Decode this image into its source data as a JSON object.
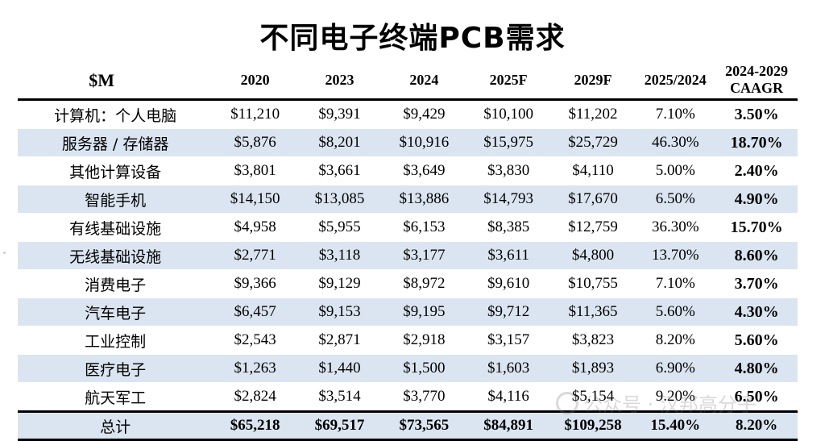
{
  "title": "不同电子终端PCB需求",
  "chart_data": {
    "type": "table",
    "title": "不同电子终端PCB需求",
    "columns": [
      "$M",
      "2020",
      "2023",
      "2024",
      "2025F",
      "2029F",
      "2025/2024",
      "2024-2029\nCAAGR"
    ],
    "rows": [
      {
        "label": "计算机：个人电脑",
        "values": [
          "$11,210",
          "$9,391",
          "$9,429",
          "$10,100",
          "$11,202",
          "7.10%",
          "3.50%"
        ]
      },
      {
        "label": "服务器 / 存储器",
        "values": [
          "$5,876",
          "$8,201",
          "$10,916",
          "$15,975",
          "$25,729",
          "46.30%",
          "18.70%"
        ]
      },
      {
        "label": "其他计算设备",
        "values": [
          "$3,801",
          "$3,661",
          "$3,649",
          "$3,830",
          "$4,110",
          "5.00%",
          "2.40%"
        ]
      },
      {
        "label": "智能手机",
        "values": [
          "$14,150",
          "$13,085",
          "$13,886",
          "$14,793",
          "$17,670",
          "6.50%",
          "4.90%"
        ]
      },
      {
        "label": "有线基础设施",
        "values": [
          "$4,958",
          "$5,955",
          "$6,153",
          "$8,385",
          "$12,759",
          "36.30%",
          "15.70%"
        ]
      },
      {
        "label": "无线基础设施",
        "values": [
          "$2,771",
          "$3,118",
          "$3,177",
          "$3,611",
          "$4,800",
          "13.70%",
          "8.60%"
        ]
      },
      {
        "label": "消费电子",
        "values": [
          "$9,366",
          "$9,129",
          "$8,972",
          "$9,610",
          "$10,755",
          "7.10%",
          "3.70%"
        ]
      },
      {
        "label": "汽车电子",
        "values": [
          "$6,457",
          "$9,153",
          "$9,195",
          "$9,712",
          "$11,365",
          "5.60%",
          "4.30%"
        ]
      },
      {
        "label": "工业控制",
        "values": [
          "$2,543",
          "$2,871",
          "$2,918",
          "$3,157",
          "$3,823",
          "8.20%",
          "5.60%"
        ]
      },
      {
        "label": "医疗电子",
        "values": [
          "$1,263",
          "$1,440",
          "$1,500",
          "$1,603",
          "$1,893",
          "6.90%",
          "4.80%"
        ]
      },
      {
        "label": "航天军工",
        "values": [
          "$2,824",
          "$3,514",
          "$3,770",
          "$4,116",
          "$5,154",
          "9.20%",
          "6.50%"
        ]
      }
    ],
    "total": {
      "label": "总计",
      "values": [
        "$65,218",
        "$69,517",
        "$73,565",
        "$84,891",
        "$109,258",
        "15.40%",
        "8.20%"
      ]
    },
    "shade_color": "#dbe5f1"
  },
  "watermark": "公众号 · 汉邦高分子"
}
